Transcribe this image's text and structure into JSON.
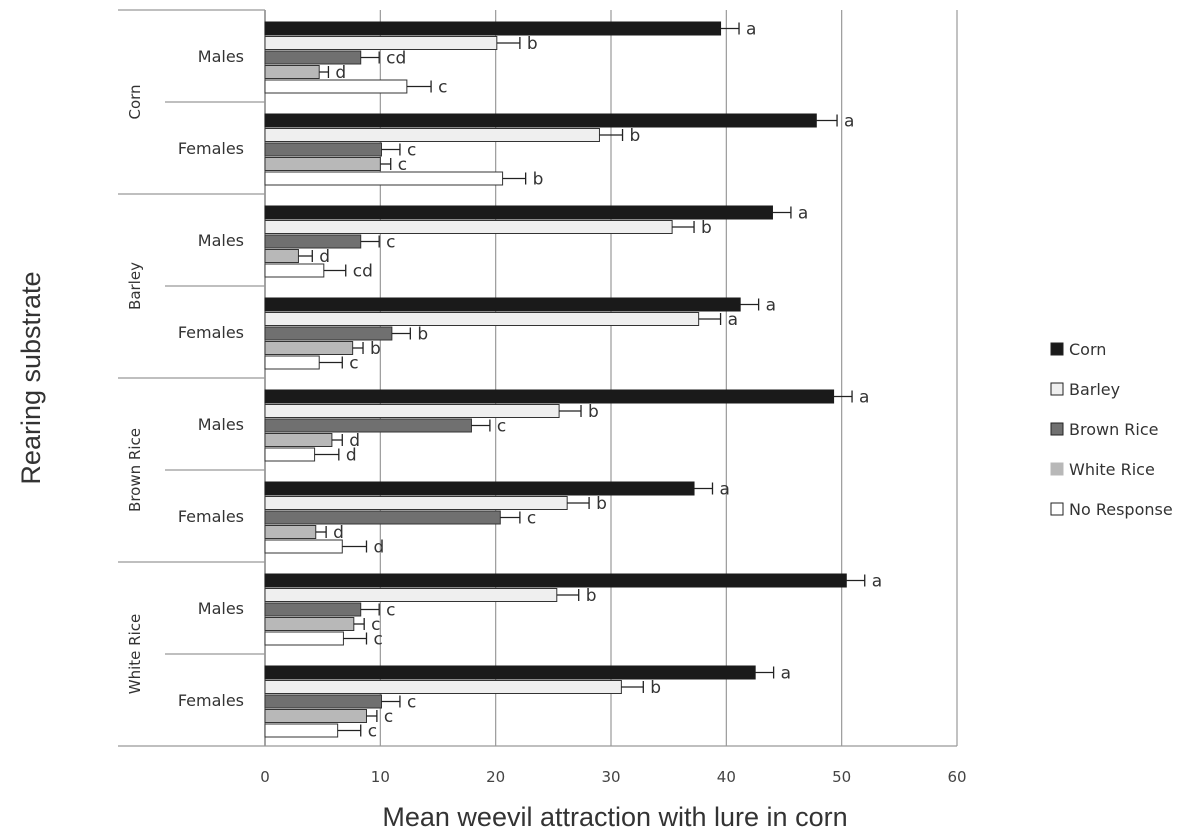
{
  "chart_data": {
    "type": "bar",
    "orientation": "horizontal",
    "xlabel": "Mean weevil attraction with lure in corn",
    "ylabel": "Rearing substrate",
    "xlim": [
      0,
      60
    ],
    "xticks": [
      0,
      10,
      20,
      30,
      40,
      50,
      60
    ],
    "grid": "vertical",
    "legend_position": "right",
    "series": [
      {
        "name": "Corn",
        "color": "#1a1a1a"
      },
      {
        "name": "Barley",
        "color": "#efefef"
      },
      {
        "name": "Brown Rice",
        "color": "#707070"
      },
      {
        "name": "White Rice",
        "color": "#b8b8b8"
      },
      {
        "name": "No Response",
        "color": "#ffffff"
      }
    ],
    "groups": [
      {
        "substrate": "Corn",
        "subgroups": [
          {
            "label": "Males",
            "values": [
              39.5,
              20.1,
              8.3,
              4.7,
              12.3
            ],
            "errors": [
              1.6,
              2.0,
              1.6,
              0.8,
              2.1
            ],
            "letters": [
              "a",
              "b",
              "cd",
              "d",
              "c"
            ]
          },
          {
            "label": "Females",
            "values": [
              47.8,
              29.0,
              10.1,
              10.0,
              20.6
            ],
            "errors": [
              1.8,
              2.0,
              1.6,
              0.9,
              2.0
            ],
            "letters": [
              "a",
              "b",
              "c",
              "c",
              "b"
            ]
          }
        ]
      },
      {
        "substrate": "Barley",
        "subgroups": [
          {
            "label": "Males",
            "values": [
              44.0,
              35.3,
              8.3,
              2.9,
              5.1
            ],
            "errors": [
              1.6,
              1.9,
              1.6,
              1.2,
              1.9
            ],
            "letters": [
              "a",
              "b",
              "c",
              "d",
              "cd"
            ]
          },
          {
            "label": "Females",
            "values": [
              41.2,
              37.6,
              11.0,
              7.6,
              4.7
            ],
            "errors": [
              1.6,
              1.9,
              1.6,
              0.9,
              2.0
            ],
            "letters": [
              "a",
              "a",
              "b",
              "b",
              "c"
            ]
          }
        ]
      },
      {
        "substrate": "Brown Rice",
        "subgroups": [
          {
            "label": "Males",
            "values": [
              49.3,
              25.5,
              17.9,
              5.8,
              4.3
            ],
            "errors": [
              1.6,
              1.9,
              1.6,
              0.9,
              2.1
            ],
            "letters": [
              "a",
              "b",
              "c",
              "d",
              "d"
            ]
          },
          {
            "label": "Females",
            "values": [
              37.2,
              26.2,
              20.4,
              4.4,
              6.7
            ],
            "errors": [
              1.6,
              1.9,
              1.7,
              0.9,
              2.1
            ],
            "letters": [
              "a",
              "b",
              "c",
              "d",
              "d"
            ]
          }
        ]
      },
      {
        "substrate": "White Rice",
        "subgroups": [
          {
            "label": "Males",
            "values": [
              50.4,
              25.3,
              8.3,
              7.7,
              6.8
            ],
            "errors": [
              1.6,
              1.9,
              1.6,
              0.9,
              2.0
            ],
            "letters": [
              "a",
              "b",
              "c",
              "c",
              "c"
            ]
          },
          {
            "label": "Females",
            "values": [
              42.5,
              30.9,
              10.1,
              8.8,
              6.3
            ],
            "errors": [
              1.6,
              1.9,
              1.6,
              0.9,
              2.0
            ],
            "letters": [
              "a",
              "b",
              "c",
              "c",
              "c"
            ]
          }
        ]
      }
    ]
  }
}
